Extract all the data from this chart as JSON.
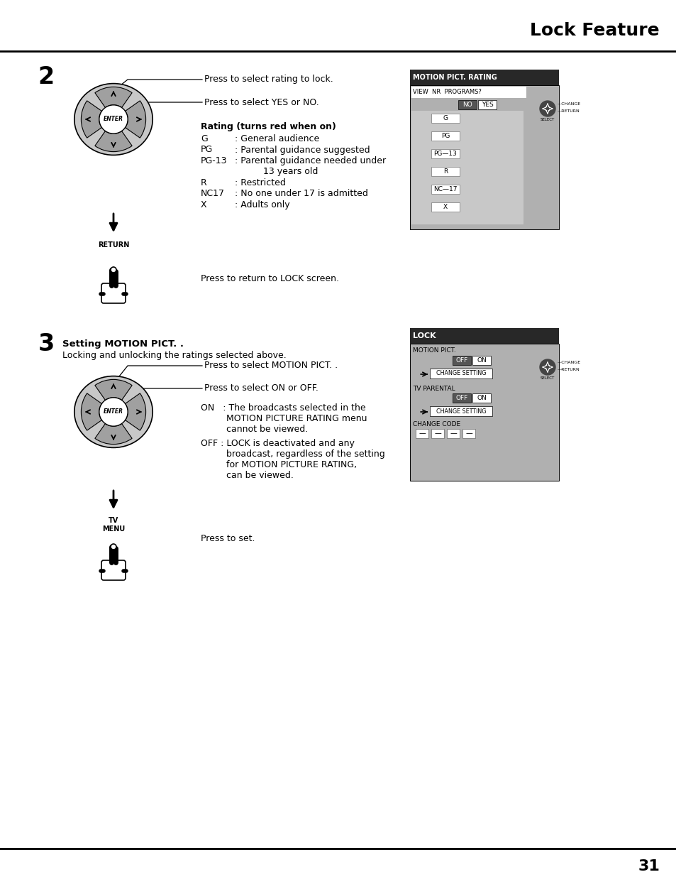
{
  "title": "Lock Feature",
  "page_number": "31",
  "bg": "#ffffff",
  "step2_num": "2",
  "step3_num": "3",
  "line1": "Press to select rating to lock.",
  "line2": "Press to select YES or NO.",
  "rating_bold": "Rating (turns red when on)",
  "rating_rows": [
    [
      "G",
      ": General audience"
    ],
    [
      "PG",
      ": Parental guidance suggested"
    ],
    [
      "PG-13",
      ": Parental guidance needed under"
    ],
    [
      "",
      "          13 years old"
    ],
    [
      "R",
      ": Restricted"
    ],
    [
      "NC17",
      ": No one under 17 is admitted"
    ],
    [
      "X",
      ": Adults only"
    ]
  ],
  "return_label": "RETURN",
  "return_text": "Press to return to LOCK screen.",
  "step3_title": "Setting MOTION PICT. .",
  "step3_sub": "Locking and unlocking the ratings selected above.",
  "s3line1": "Press to select MOTION PICT. .",
  "s3line2": "Press to select ON or OFF.",
  "on_line1": "ON   : The broadcasts selected in the",
  "on_line2": "         MOTION PICTURE RATING menu",
  "on_line3": "         cannot be viewed.",
  "off_line1": "OFF : LOCK is deactivated and any",
  "off_line2": "         broadcast, regardless of the setting",
  "off_line3": "         for MOTION PICTURE RATING,",
  "off_line4": "         can be viewed.",
  "tv_menu": "TV\nMENU",
  "press_set": "Press to set.",
  "p1_title": "MOTION PICT. RATING",
  "p1_bg": "#282828",
  "p1_gray": "#b0b0b0",
  "p1_ratings": [
    "G",
    "PG",
    "PG—13",
    "R",
    "NC—17",
    "X"
  ],
  "p2_title": "LOCK",
  "p2_bg": "#282828",
  "p2_gray": "#b0b0b0"
}
